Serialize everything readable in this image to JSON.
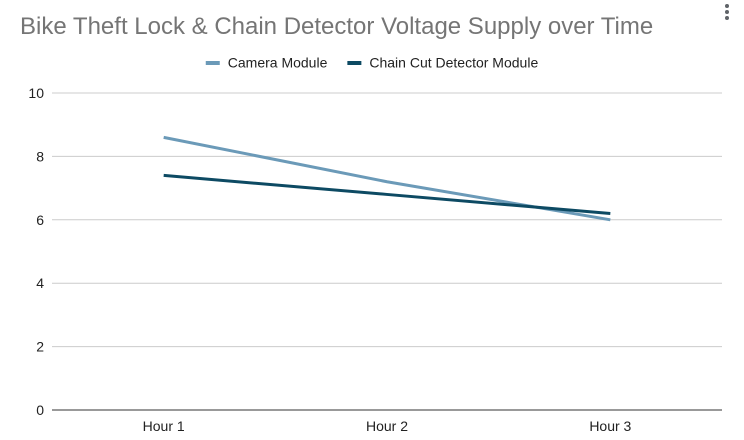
{
  "chart_data": {
    "type": "line",
    "title": "Bike Theft Lock & Chain Detector Voltage Supply over Time",
    "xlabel": "",
    "ylabel": "",
    "categories": [
      "Hour 1",
      "Hour 2",
      "Hour 3"
    ],
    "ylim": [
      0,
      10
    ],
    "yticks": [
      0,
      2,
      4,
      6,
      8,
      10
    ],
    "grid": true,
    "legend_position": "top",
    "series": [
      {
        "name": "Camera Module",
        "values": [
          8.6,
          7.2,
          6.0
        ],
        "color": "#6b9ab8"
      },
      {
        "name": "Chain Cut Detector Module",
        "values": [
          7.4,
          6.8,
          6.2
        ],
        "color": "#0d4a63"
      }
    ]
  },
  "menu_icon": "vertical-dots-menu-icon"
}
